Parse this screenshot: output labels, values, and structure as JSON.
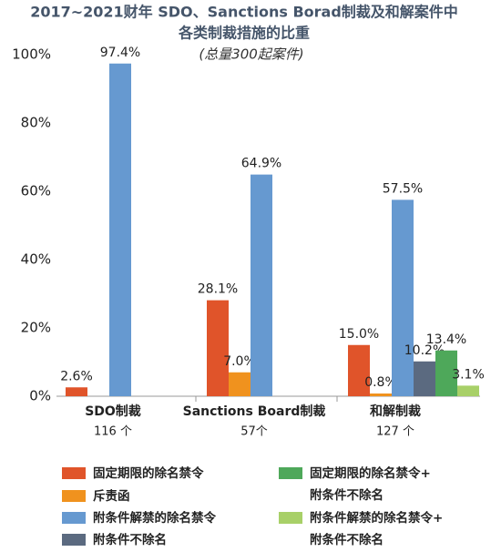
{
  "chart_data": {
    "type": "bar",
    "title": "2017~2021财年 SDO、Sanctions Borad制裁及和解案件中",
    "title_line2": "各类制裁措施的比重",
    "subtitle": "(总量300起案件)",
    "categories": [
      "SDO制裁",
      "Sanctions Board制裁",
      "和解制裁"
    ],
    "category_counts": [
      "116 个",
      "57个",
      "127 个"
    ],
    "series": [
      {
        "name": "固定期限的除名禁令",
        "color": "#e0542a",
        "values": [
          2.6,
          28.1,
          15.0
        ],
        "value_labels": [
          "2.6%",
          "28.1%",
          "15.0%"
        ]
      },
      {
        "name": "斥责函",
        "color": "#f0921e",
        "values": [
          0,
          7.0,
          0.8
        ],
        "value_labels": [
          null,
          "7.0%",
          "0.8%"
        ]
      },
      {
        "name": "附条件解禁的除名禁令",
        "color": "#6699d0",
        "values": [
          97.4,
          64.9,
          57.5
        ],
        "value_labels": [
          "97.4%",
          "64.9%",
          "57.5%"
        ]
      },
      {
        "name": "附条件不除名",
        "color": "#5b6a80",
        "values": [
          0,
          0,
          10.2
        ],
        "value_labels": [
          null,
          null,
          "10.2%"
        ]
      },
      {
        "name": "固定期限的除名禁令+\n附条件不除名",
        "color": "#4ea85a",
        "values": [
          0,
          0,
          13.4
        ],
        "value_labels": [
          null,
          null,
          "13.4%"
        ]
      },
      {
        "name": "附条件解禁的除名禁令+\n附条件不除名",
        "color": "#a8d068",
        "values": [
          0,
          0,
          3.1
        ],
        "value_labels": [
          null,
          null,
          "3.1%"
        ]
      }
    ],
    "ylim": [
      0,
      100
    ],
    "yticks": [
      {
        "value": 0,
        "label": "0%"
      },
      {
        "value": 20,
        "label": "20%"
      },
      {
        "value": 40,
        "label": "40%"
      },
      {
        "value": 60,
        "label": "60%"
      },
      {
        "value": 80,
        "label": "80%"
      },
      {
        "value": 100,
        "label": "100%"
      }
    ],
    "grid": false
  }
}
